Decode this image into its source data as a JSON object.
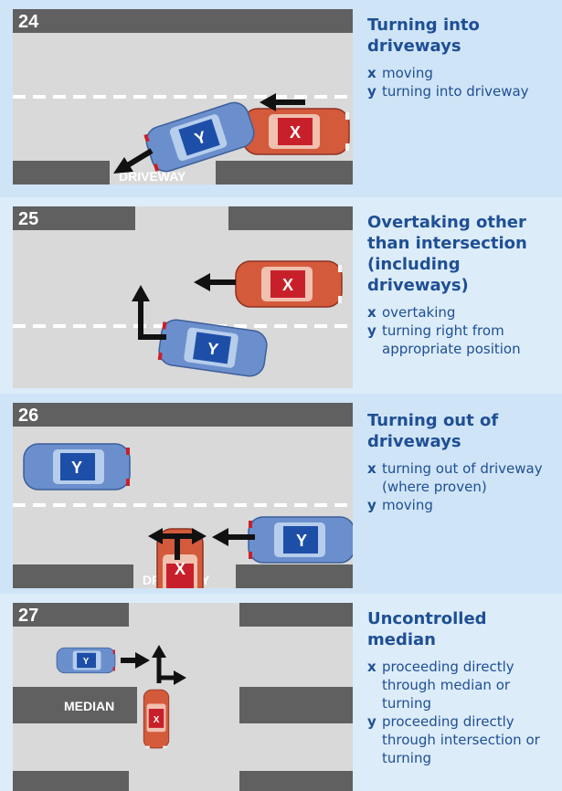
{
  "colors": {
    "panel_bg_dark": "#cfe4f6",
    "panel_bg_light": "#dcecf9",
    "road": "#d9d9d9",
    "kerb": "#606060",
    "title": "#1f4f94",
    "car_blue": "#6a8fcc",
    "car_red": "#d45a3c"
  },
  "panels": [
    {
      "number": "24",
      "title": "Turning into driveways",
      "legend": [
        {
          "key": "x",
          "text": "moving"
        },
        {
          "key": "y",
          "text": "turning into driveway"
        }
      ],
      "road_label": "DRIVEWAY"
    },
    {
      "number": "25",
      "title": "Overtaking other than intersection (including driveways)",
      "legend": [
        {
          "key": "x",
          "text": "overtaking"
        },
        {
          "key": "y",
          "text": "turning right from appropriate position"
        }
      ]
    },
    {
      "number": "26",
      "title": "Turning out of driveways",
      "legend": [
        {
          "key": "x",
          "text": "turning out of driveway (where proven)"
        },
        {
          "key": "y",
          "text": "moving"
        }
      ],
      "road_label": "DRIVEWAY"
    },
    {
      "number": "27",
      "title": "Uncontrolled median",
      "legend": [
        {
          "key": "x",
          "text": "proceeding directly through median or turning"
        },
        {
          "key": "y",
          "text": "proceeding directly through intersection or turning"
        }
      ],
      "road_label": "MEDIAN"
    }
  ],
  "car_labels": {
    "x": "X",
    "y": "Y"
  }
}
